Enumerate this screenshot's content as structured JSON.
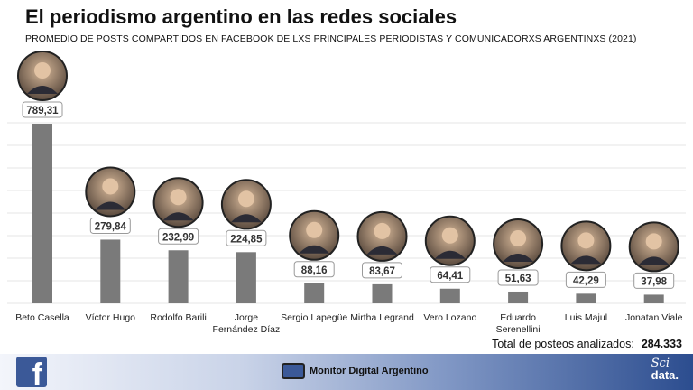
{
  "title": "El periodismo argentino en las redes sociales",
  "subtitle": "PROMEDIO DE POSTS COMPARTIDOS EN FACEBOOK DE LXS PRINCIPALES PERIODISTAS Y COMUNICADORXS ARGENTINXS (2021)",
  "total_label": "Total de posteos analizados:",
  "total_value": "284.333",
  "footer": {
    "brand_label": "Monitor Digital Argentino",
    "sci_top": "Sci",
    "sci_bottom": "data.",
    "facebook_letter": "f"
  },
  "colors": {
    "bar": "#7a7a7a",
    "footer_dark": "#2c4d8f",
    "facebook": "#3b5998"
  },
  "chart_data": {
    "type": "bar",
    "categories": [
      "Beto Casella",
      "Víctor Hugo",
      "Rodolfo Barili",
      "Jorge Fernández Díaz",
      "Sergio Lapegüe",
      "Mirtha Legrand",
      "Vero  Lozano",
      "Eduardo Serenellini",
      "Luis Majul",
      "Jonatan Viale"
    ],
    "category_lines": [
      [
        "Beto Casella"
      ],
      [
        "Víctor Hugo"
      ],
      [
        "Rodolfo Barili"
      ],
      [
        "Jorge",
        "Fernández Díaz"
      ],
      [
        "Sergio Lapegüe"
      ],
      [
        "Mirtha Legrand"
      ],
      [
        "Vero  Lozano"
      ],
      [
        "Eduardo",
        "Serenellini"
      ],
      [
        "Luis Majul"
      ],
      [
        "Jonatan Viale"
      ]
    ],
    "values": [
      789.31,
      279.84,
      232.99,
      224.85,
      88.16,
      83.67,
      64.41,
      51.63,
      42.29,
      37.98
    ],
    "value_labels": [
      "789,31",
      "279,84",
      "232,99",
      "224,85",
      "88,16",
      "83,67",
      "64,41",
      "51,63",
      "42,29",
      "37,98"
    ],
    "ylim": [
      0,
      800
    ],
    "grid": true,
    "legend": "none"
  }
}
